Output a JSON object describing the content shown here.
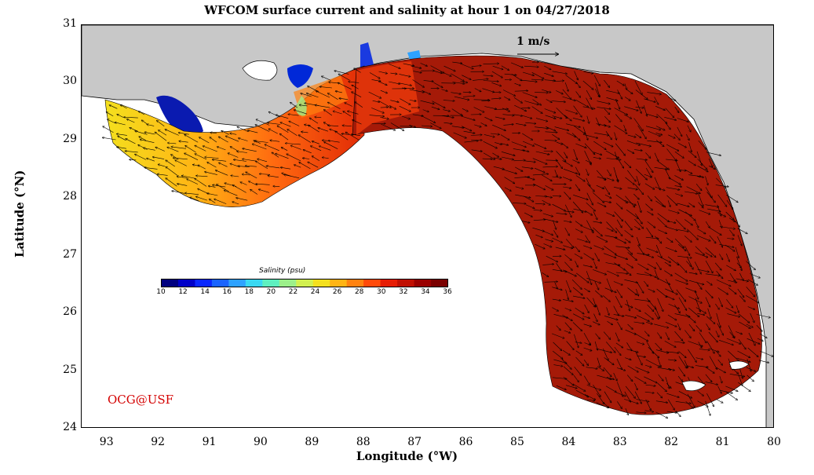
{
  "title": "WFCOM surface current and salinity at hour 1 on 04/27/2018",
  "x_axis": {
    "label": "Longitude (°W)",
    "ticks": [
      "93",
      "92",
      "91",
      "90",
      "89",
      "88",
      "87",
      "86",
      "85",
      "84",
      "83",
      "82",
      "81",
      "80"
    ]
  },
  "y_axis": {
    "label": "Latitude (°N)",
    "ticks": [
      "31",
      "30",
      "29",
      "28",
      "27",
      "26",
      "25",
      "24"
    ]
  },
  "scale_arrow": {
    "label": "1 m/s"
  },
  "credit": "OCG@USF",
  "colorbar": {
    "title": "Salinity (psu)",
    "ticks": [
      "10",
      "12",
      "14",
      "16",
      "18",
      "20",
      "22",
      "24",
      "26",
      "28",
      "30",
      "32",
      "34",
      "36"
    ],
    "colors": [
      "#00007f",
      "#0000c8",
      "#0a28ff",
      "#1a64ff",
      "#2ea2ff",
      "#3ad8f2",
      "#5ef0c0",
      "#9cf08a",
      "#d2f050",
      "#f4e01e",
      "#ffb414",
      "#ff8210",
      "#ff4a0a",
      "#e61d05",
      "#c00f02",
      "#9a0000",
      "#7a0000"
    ]
  },
  "map": {
    "land_color": "#c8c8c8",
    "ocean_base_color": "#a51a08"
  }
}
